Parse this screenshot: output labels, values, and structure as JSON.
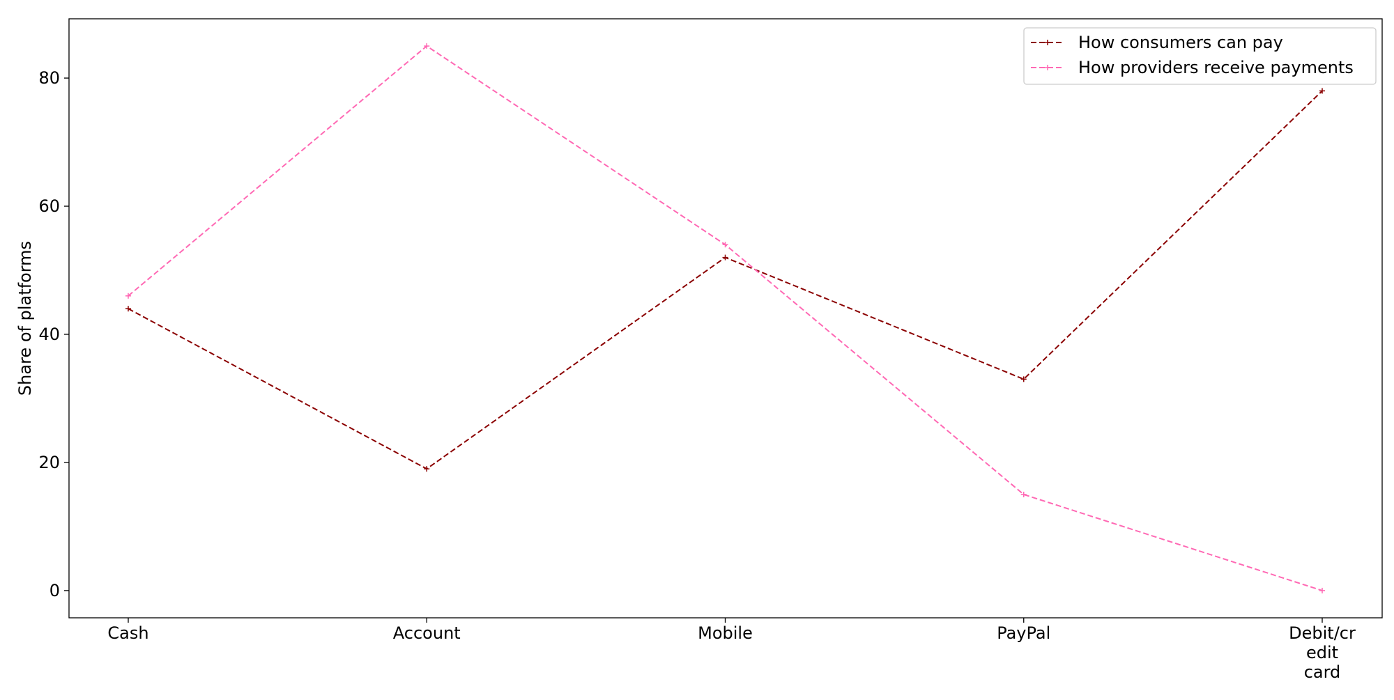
{
  "chart_data": {
    "type": "line",
    "title": "",
    "xlabel": "",
    "ylabel": "Share of platforms",
    "categories": [
      "Cash",
      "Account",
      "Mobile",
      "PayPal",
      "Debit/credit card"
    ],
    "category_tick_lines": [
      [
        "Cash"
      ],
      [
        "Account"
      ],
      [
        "Mobile"
      ],
      [
        "PayPal"
      ],
      [
        "Debit/cr",
        "edit",
        "card"
      ]
    ],
    "ylim": [
      -4.25,
      89.25
    ],
    "yticks": [
      0,
      20,
      40,
      60,
      80
    ],
    "grid": false,
    "legend_position": "top-right",
    "series": [
      {
        "name": "How consumers can pay",
        "color": "#8b0000",
        "values": [
          44,
          19,
          52,
          33,
          78
        ]
      },
      {
        "name": "How providers receive payments",
        "color": "#ff69b4",
        "values": [
          46,
          85,
          54,
          15,
          0
        ]
      }
    ]
  }
}
